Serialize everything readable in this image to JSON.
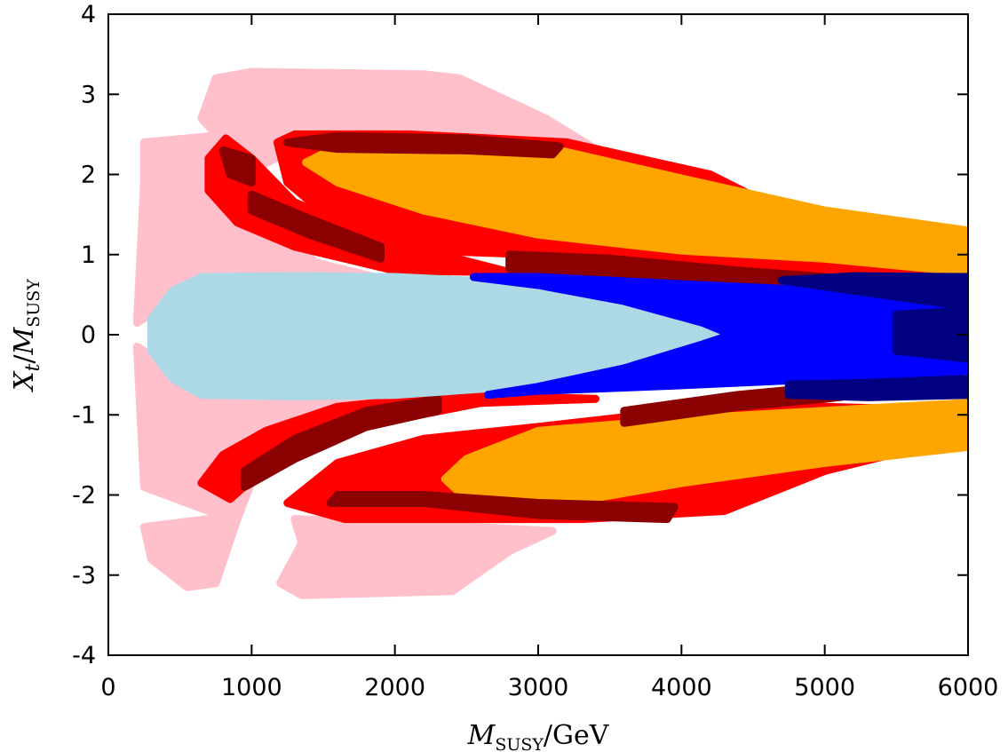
{
  "chart_data": {
    "type": "scatter",
    "x_range": [
      0,
      6000
    ],
    "y_range": [
      -4,
      4
    ],
    "x_ticks": [
      "0",
      "1000",
      "2000",
      "3000",
      "4000",
      "5000",
      "6000"
    ],
    "y_ticks": [
      "4",
      "3",
      "2",
      "1",
      "0",
      "-1",
      "-2",
      "-3",
      "-4"
    ],
    "xlabel": {
      "var": "M",
      "sub": "SUSY",
      "unit": "/GeV"
    },
    "ylabel": {
      "var1": "X",
      "sub1": "t",
      "slash": "/",
      "var2": "M",
      "sub2": "SUSY"
    },
    "grid": false,
    "legend": "none",
    "regions": [
      {
        "color": "#ffc0cb",
        "outline": [
          [
            750,
            3.2
          ],
          [
            1000,
            3.28
          ],
          [
            2200,
            3.25
          ],
          [
            2450,
            3.2
          ],
          [
            3050,
            2.7
          ],
          [
            3600,
            2.1
          ],
          [
            3000,
            2.0
          ],
          [
            2200,
            2.4
          ],
          [
            1400,
            2.4
          ],
          [
            1050,
            2.1
          ],
          [
            850,
            2.3
          ],
          [
            650,
            2.7
          ]
        ]
      },
      {
        "color": "#ffc0cb",
        "outline": [
          [
            250,
            2.4
          ],
          [
            850,
            2.5
          ],
          [
            1000,
            1.6
          ],
          [
            1450,
            0.9
          ],
          [
            1900,
            0.7
          ],
          [
            650,
            0.7
          ],
          [
            430,
            0.4
          ],
          [
            200,
            0.15
          ],
          [
            250,
            1.9
          ]
        ]
      },
      {
        "color": "#ffc0cb",
        "outline": [
          [
            200,
            -0.15
          ],
          [
            430,
            -0.4
          ],
          [
            650,
            -0.75
          ],
          [
            1900,
            -0.75
          ],
          [
            1450,
            -1.0
          ],
          [
            1050,
            -1.6
          ],
          [
            900,
            -2.3
          ],
          [
            700,
            -2.2
          ],
          [
            250,
            -1.9
          ]
        ]
      },
      {
        "color": "#ffc0cb",
        "outline": [
          [
            250,
            -2.4
          ],
          [
            700,
            -2.3
          ],
          [
            900,
            -2.3
          ],
          [
            750,
            -3.1
          ],
          [
            550,
            -3.15
          ],
          [
            300,
            -2.8
          ]
        ]
      },
      {
        "color": "#ffc0cb",
        "outline": [
          [
            1200,
            -3.1
          ],
          [
            1350,
            -3.25
          ],
          [
            2400,
            -3.2
          ],
          [
            2800,
            -2.7
          ],
          [
            3100,
            -2.45
          ],
          [
            2000,
            -2.35
          ],
          [
            1300,
            -2.3
          ],
          [
            1350,
            -2.6
          ]
        ]
      },
      {
        "color": "#ff0000",
        "outline": [
          [
            1180,
            2.4
          ],
          [
            1300,
            2.5
          ],
          [
            2100,
            2.5
          ],
          [
            3200,
            2.4
          ],
          [
            4200,
            2.0
          ],
          [
            5200,
            1.1
          ],
          [
            5850,
            0.85
          ],
          [
            6000,
            0.85
          ],
          [
            6000,
            0.6
          ],
          [
            5000,
            0.63
          ],
          [
            4000,
            0.8
          ],
          [
            3000,
            1.0
          ],
          [
            2200,
            1.05
          ],
          [
            1550,
            1.45
          ],
          [
            1250,
            1.9
          ]
        ]
      },
      {
        "color": "#ff0000",
        "outline": [
          [
            700,
            2.2
          ],
          [
            820,
            2.45
          ],
          [
            1000,
            2.2
          ],
          [
            1300,
            1.65
          ],
          [
            2000,
            1.15
          ],
          [
            2800,
            0.78
          ],
          [
            2000,
            0.8
          ],
          [
            1300,
            1.1
          ],
          [
            900,
            1.4
          ],
          [
            700,
            1.8
          ]
        ]
      },
      {
        "color": "#ff0000",
        "outline": [
          [
            650,
            -1.85
          ],
          [
            850,
            -2.05
          ],
          [
            1100,
            -1.65
          ],
          [
            1600,
            -1.2
          ],
          [
            2600,
            -0.85
          ],
          [
            3400,
            -0.8
          ],
          [
            2400,
            -0.75
          ],
          [
            1600,
            -0.9
          ],
          [
            1100,
            -1.2
          ],
          [
            800,
            -1.5
          ]
        ]
      },
      {
        "color": "#ff0000",
        "outline": [
          [
            1250,
            -2.1
          ],
          [
            1650,
            -2.3
          ],
          [
            2500,
            -2.3
          ],
          [
            3300,
            -2.3
          ],
          [
            4300,
            -2.2
          ],
          [
            5000,
            -1.7
          ],
          [
            5900,
            -1.3
          ],
          [
            6000,
            -1.2
          ],
          [
            6000,
            -0.95
          ],
          [
            5000,
            -0.9
          ],
          [
            4000,
            -0.95
          ],
          [
            3000,
            -1.15
          ],
          [
            2200,
            -1.3
          ],
          [
            1600,
            -1.6
          ]
        ]
      },
      {
        "color": "#ffa500",
        "outline": [
          [
            1380,
            2.15
          ],
          [
            1600,
            2.35
          ],
          [
            2500,
            2.35
          ],
          [
            3100,
            2.32
          ],
          [
            4000,
            1.95
          ],
          [
            5000,
            1.55
          ],
          [
            6000,
            1.3
          ],
          [
            6000,
            0.78
          ],
          [
            5000,
            0.95
          ],
          [
            4000,
            1.05
          ],
          [
            3000,
            1.25
          ],
          [
            2200,
            1.55
          ],
          [
            1600,
            1.9
          ]
        ]
      },
      {
        "color": "#ffa500",
        "outline": [
          [
            2350,
            -1.8
          ],
          [
            2500,
            -1.55
          ],
          [
            3000,
            -1.2
          ],
          [
            4000,
            -1.05
          ],
          [
            5000,
            -0.95
          ],
          [
            6000,
            -0.85
          ],
          [
            6000,
            -1.4
          ],
          [
            5000,
            -1.6
          ],
          [
            4000,
            -1.85
          ],
          [
            3200,
            -2.1
          ],
          [
            2500,
            -2.05
          ]
        ]
      },
      {
        "color": "#8b0000",
        "outline": [
          [
            800,
            2.3
          ],
          [
            1000,
            2.2
          ],
          [
            1000,
            1.9
          ],
          [
            850,
            2.0
          ]
        ]
      },
      {
        "color": "#8b0000",
        "outline": [
          [
            1000,
            1.75
          ],
          [
            1400,
            1.45
          ],
          [
            1900,
            1.1
          ],
          [
            1900,
            0.95
          ],
          [
            1400,
            1.25
          ],
          [
            1000,
            1.55
          ]
        ]
      },
      {
        "color": "#8b0000",
        "outline": [
          [
            1250,
            2.4
          ],
          [
            1600,
            2.48
          ],
          [
            2500,
            2.45
          ],
          [
            3150,
            2.35
          ],
          [
            3100,
            2.25
          ],
          [
            2500,
            2.3
          ],
          [
            1600,
            2.32
          ]
        ]
      },
      {
        "color": "#8b0000",
        "outline": [
          [
            2800,
            1.0
          ],
          [
            3500,
            0.95
          ],
          [
            4400,
            0.8
          ],
          [
            5000,
            0.72
          ],
          [
            5600,
            0.6
          ],
          [
            5600,
            0.5
          ],
          [
            5000,
            0.58
          ],
          [
            4400,
            0.64
          ],
          [
            3500,
            0.76
          ],
          [
            2800,
            0.82
          ]
        ]
      },
      {
        "color": "#8b0000",
        "outline": [
          [
            950,
            -1.9
          ],
          [
            1300,
            -1.55
          ],
          [
            1800,
            -1.15
          ],
          [
            2300,
            -0.95
          ],
          [
            2300,
            -0.8
          ],
          [
            1800,
            -0.95
          ],
          [
            1300,
            -1.3
          ],
          [
            950,
            -1.7
          ]
        ]
      },
      {
        "color": "#8b0000",
        "outline": [
          [
            1550,
            -2.1
          ],
          [
            2200,
            -2.1
          ],
          [
            3000,
            -2.25
          ],
          [
            3900,
            -2.3
          ],
          [
            3950,
            -2.15
          ],
          [
            3000,
            -2.1
          ],
          [
            2200,
            -2.0
          ],
          [
            1600,
            -2.0
          ]
        ]
      },
      {
        "color": "#8b0000",
        "outline": [
          [
            3600,
            -1.1
          ],
          [
            4400,
            -0.9
          ],
          [
            5000,
            -0.8
          ],
          [
            5700,
            -0.65
          ],
          [
            5700,
            -0.55
          ],
          [
            5000,
            -0.65
          ],
          [
            4400,
            -0.75
          ],
          [
            3600,
            -0.95
          ]
        ]
      },
      {
        "color": "#add8e6",
        "outline": [
          [
            450,
            0.55
          ],
          [
            650,
            0.72
          ],
          [
            1300,
            0.73
          ],
          [
            2000,
            0.72
          ],
          [
            2800,
            0.65
          ],
          [
            3500,
            0.45
          ],
          [
            4100,
            0.2
          ],
          [
            4350,
            0.0
          ],
          [
            4100,
            -0.2
          ],
          [
            3500,
            -0.45
          ],
          [
            2800,
            -0.65
          ],
          [
            2000,
            -0.75
          ],
          [
            1300,
            -0.77
          ],
          [
            650,
            -0.75
          ],
          [
            450,
            -0.55
          ],
          [
            300,
            -0.2
          ],
          [
            300,
            0.2
          ]
        ]
      },
      {
        "color": "#0000ff",
        "outline": [
          [
            2550,
            0.72
          ],
          [
            3000,
            0.72
          ],
          [
            4000,
            0.63
          ],
          [
            5000,
            0.55
          ],
          [
            6000,
            0.45
          ],
          [
            6000,
            -0.45
          ],
          [
            5000,
            -0.55
          ],
          [
            4000,
            -0.63
          ],
          [
            3000,
            -0.7
          ],
          [
            2650,
            -0.75
          ],
          [
            3000,
            -0.65
          ],
          [
            3600,
            -0.42
          ],
          [
            4150,
            -0.12
          ],
          [
            4350,
            0.0
          ],
          [
            4150,
            0.15
          ],
          [
            3600,
            0.42
          ],
          [
            3000,
            0.62
          ]
        ]
      },
      {
        "color": "#000080",
        "outline": [
          [
            4700,
            0.68
          ],
          [
            5200,
            0.73
          ],
          [
            6000,
            0.72
          ],
          [
            6000,
            0.35
          ],
          [
            5600,
            0.45
          ],
          [
            5200,
            0.55
          ]
        ]
      },
      {
        "color": "#000080",
        "outline": [
          [
            4750,
            -0.62
          ],
          [
            5300,
            -0.6
          ],
          [
            6000,
            -0.55
          ],
          [
            6000,
            -0.75
          ],
          [
            5300,
            -0.78
          ],
          [
            4750,
            -0.75
          ]
        ]
      },
      {
        "color": "#000080",
        "outline": [
          [
            5500,
            0.25
          ],
          [
            6000,
            0.3
          ],
          [
            6000,
            -0.3
          ],
          [
            5500,
            -0.2
          ]
        ]
      }
    ]
  }
}
